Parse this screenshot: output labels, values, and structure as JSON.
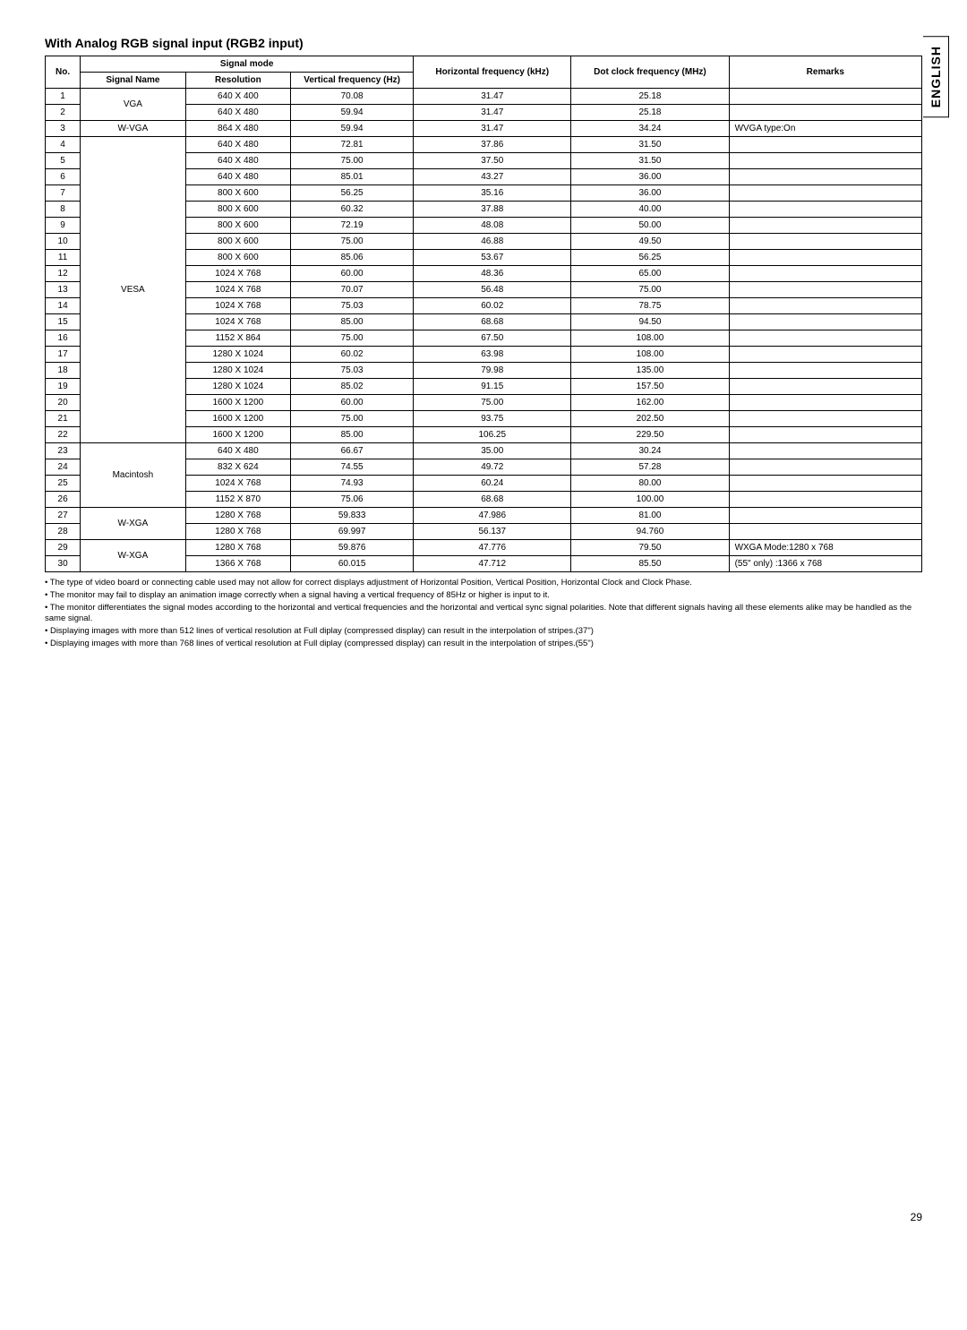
{
  "sideTab": "ENGLISH",
  "title": "With Analog RGB signal input (RGB2 input)",
  "headers": {
    "no": "No.",
    "signalMode": "Signal mode",
    "signalName": "Signal Name",
    "resolution": "Resolution",
    "vfreq": "Vertical frequency (Hz)",
    "hfreq": "Horizontal frequency (kHz)",
    "dot": "Dot clock frequency (MHz)",
    "remarks": "Remarks"
  },
  "groups": [
    {
      "name": "VGA",
      "rows": [
        {
          "no": "1",
          "res": "640 X 400",
          "v": "70.08",
          "h": "31.47",
          "d": "25.18",
          "r": ""
        },
        {
          "no": "2",
          "res": "640 X 480",
          "v": "59.94",
          "h": "31.47",
          "d": "25.18",
          "r": ""
        }
      ]
    },
    {
      "name": "W-VGA",
      "rows": [
        {
          "no": "3",
          "res": "864 X 480",
          "v": "59.94",
          "h": "31.47",
          "d": "34.24",
          "r": "WVGA type:On"
        }
      ]
    },
    {
      "name": "VESA",
      "rows": [
        {
          "no": "4",
          "res": "640 X 480",
          "v": "72.81",
          "h": "37.86",
          "d": "31.50",
          "r": ""
        },
        {
          "no": "5",
          "res": "640 X 480",
          "v": "75.00",
          "h": "37.50",
          "d": "31.50",
          "r": ""
        },
        {
          "no": "6",
          "res": "640 X 480",
          "v": "85.01",
          "h": "43.27",
          "d": "36.00",
          "r": ""
        },
        {
          "no": "7",
          "res": "800 X 600",
          "v": "56.25",
          "h": "35.16",
          "d": "36.00",
          "r": ""
        },
        {
          "no": "8",
          "res": "800 X 600",
          "v": "60.32",
          "h": "37.88",
          "d": "40.00",
          "r": ""
        },
        {
          "no": "9",
          "res": "800 X 600",
          "v": "72.19",
          "h": "48.08",
          "d": "50.00",
          "r": ""
        },
        {
          "no": "10",
          "res": "800 X 600",
          "v": "75.00",
          "h": "46.88",
          "d": "49.50",
          "r": ""
        },
        {
          "no": "11",
          "res": "800 X 600",
          "v": "85.06",
          "h": "53.67",
          "d": "56.25",
          "r": ""
        },
        {
          "no": "12",
          "res": "1024 X 768",
          "v": "60.00",
          "h": "48.36",
          "d": "65.00",
          "r": ""
        },
        {
          "no": "13",
          "res": "1024 X 768",
          "v": "70.07",
          "h": "56.48",
          "d": "75.00",
          "r": ""
        },
        {
          "no": "14",
          "res": "1024 X 768",
          "v": "75.03",
          "h": "60.02",
          "d": "78.75",
          "r": ""
        },
        {
          "no": "15",
          "res": "1024 X 768",
          "v": "85.00",
          "h": "68.68",
          "d": "94.50",
          "r": ""
        },
        {
          "no": "16",
          "res": "1152 X 864",
          "v": "75.00",
          "h": "67.50",
          "d": "108.00",
          "r": ""
        },
        {
          "no": "17",
          "res": "1280 X 1024",
          "v": "60.02",
          "h": "63.98",
          "d": "108.00",
          "r": ""
        },
        {
          "no": "18",
          "res": "1280 X 1024",
          "v": "75.03",
          "h": "79.98",
          "d": "135.00",
          "r": ""
        },
        {
          "no": "19",
          "res": "1280 X 1024",
          "v": "85.02",
          "h": "91.15",
          "d": "157.50",
          "r": ""
        },
        {
          "no": "20",
          "res": "1600 X 1200",
          "v": "60.00",
          "h": "75.00",
          "d": "162.00",
          "r": ""
        },
        {
          "no": "21",
          "res": "1600 X 1200",
          "v": "75.00",
          "h": "93.75",
          "d": "202.50",
          "r": ""
        },
        {
          "no": "22",
          "res": "1600 X 1200",
          "v": "85.00",
          "h": "106.25",
          "d": "229.50",
          "r": ""
        }
      ]
    },
    {
      "name": "Macintosh",
      "rows": [
        {
          "no": "23",
          "res": "640 X 480",
          "v": "66.67",
          "h": "35.00",
          "d": "30.24",
          "r": ""
        },
        {
          "no": "24",
          "res": "832 X 624",
          "v": "74.55",
          "h": "49.72",
          "d": "57.28",
          "r": ""
        },
        {
          "no": "25",
          "res": "1024 X 768",
          "v": "74.93",
          "h": "60.24",
          "d": "80.00",
          "r": ""
        },
        {
          "no": "26",
          "res": "1152 X 870",
          "v": "75.06",
          "h": "68.68",
          "d": "100.00",
          "r": ""
        }
      ]
    },
    {
      "name": "W-XGA",
      "rows": [
        {
          "no": "27",
          "res": "1280 X 768",
          "v": "59.833",
          "h": "47.986",
          "d": "81.00",
          "r": ""
        },
        {
          "no": "28",
          "res": "1280 X 768",
          "v": "69.997",
          "h": "56.137",
          "d": "94.760",
          "r": ""
        }
      ]
    },
    {
      "name": "W-XGA",
      "rows": [
        {
          "no": "29",
          "res": "1280 X 768",
          "v": "59.876",
          "h": "47.776",
          "d": "79.50",
          "r": "WXGA Mode:1280 x 768"
        },
        {
          "no": "30",
          "res": "1366 X 768",
          "v": "60.015",
          "h": "47.712",
          "d": "85.50",
          "r": "(55\" only)    :1366 x 768"
        }
      ]
    }
  ],
  "notes": [
    "• The type of video board or connecting cable used may not allow for correct displays adjustment of Horizontal Position, Vertical Position, Horizontal Clock and Clock Phase.",
    "• The monitor may fail to display an animation image correctly when a signal having a vertical frequency of 85Hz or higher is input to it.",
    "• The monitor differentiates the signal modes according to the horizontal and vertical frequencies and the horizontal and vertical sync signal polarities.  Note that different signals having all these elements alike may be handled as the same signal.",
    "• Displaying images with more than 512 lines of vertical resolution at Full diplay (compressed display) can result in the interpolation of stripes.(37\")",
    "• Displaying images with more than 768 lines of vertical resolution at Full diplay (compressed display) can result in the interpolation of stripes.(55\")"
  ],
  "pageNumber": "29",
  "colWidths": {
    "no": "4%",
    "name": "12%",
    "res": "12%",
    "v": "14%",
    "h": "18%",
    "d": "18%",
    "r": "22%"
  }
}
